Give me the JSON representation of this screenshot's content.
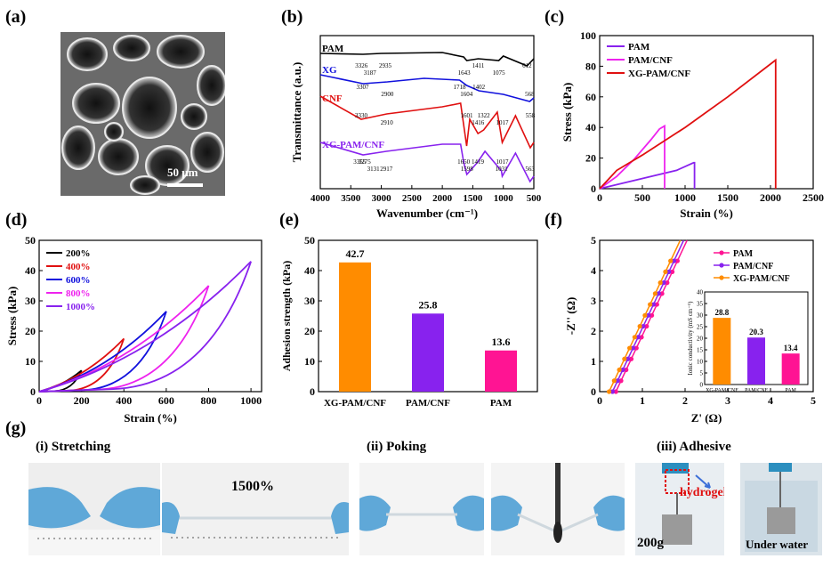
{
  "panel_labels": {
    "a": "(a)",
    "b": "(b)",
    "c": "(c)",
    "d": "(d)",
    "e": "(e)",
    "f": "(f)",
    "g": "(g)"
  },
  "sem": {
    "scalebar_label": "50 μm"
  },
  "photos": {
    "stretching_title": "(i) Stretching",
    "poking_title": "(ii) Poking",
    "adhesive_title": "(iii) Adhesive",
    "stretch_value": "1500%",
    "hydrogel_label": "hydrogel",
    "weight_label": "200g",
    "underwater_label": "Under water"
  },
  "colors": {
    "black": "#000000",
    "blue": "#1111dd",
    "red": "#e01010",
    "purple": "#8822ee",
    "magenta": "#ee22ee",
    "orange": "#ff8c00",
    "pink": "#ff1493"
  },
  "chart_data": [
    {
      "id": "b",
      "type": "line",
      "xlabel": "Wavenumber (cm⁻¹)",
      "ylabel": "Transmittance (a.u.)",
      "xlim": [
        4000,
        500
      ],
      "x_ticks": [
        "4000",
        "3500",
        "3000",
        "2500",
        "2000",
        "1500",
        "1000",
        "500"
      ],
      "series": [
        {
          "name": "PAM",
          "color": "#000000",
          "peaks": [
            "3326",
            "3187",
            "2935",
            "1643",
            "1411",
            "1075",
            "612"
          ]
        },
        {
          "name": "XG",
          "color": "#1111dd",
          "peaks": [
            "3307",
            "2900",
            "1718",
            "1604",
            "1402",
            "568"
          ]
        },
        {
          "name": "CNF",
          "color": "#e01010",
          "peaks": [
            "3330",
            "2910",
            "1601",
            "1416",
            "1322",
            "1017",
            "558"
          ]
        },
        {
          "name": "XG-PAM/CNF",
          "color": "#8822ee",
          "peaks": [
            "3355",
            "3131",
            "3275",
            "2917",
            "1650",
            "1598",
            "1419",
            "1031",
            "1017",
            "563"
          ]
        }
      ]
    },
    {
      "id": "c",
      "type": "line",
      "xlabel": "Strain (%)",
      "ylabel": "Stress (kPa)",
      "xlim": [
        0,
        2500
      ],
      "ylim": [
        0,
        100
      ],
      "x_ticks": [
        "0",
        "500",
        "1000",
        "1500",
        "2000",
        "2500"
      ],
      "y_ticks": [
        "0",
        "20",
        "40",
        "60",
        "80",
        "100"
      ],
      "legend_position": "top-left",
      "series": [
        {
          "name": "PAM",
          "color": "#8822ee",
          "x": [
            0,
            300,
            600,
            900,
            1100,
            1110,
            1110
          ],
          "y": [
            0,
            4,
            8,
            12,
            17,
            17,
            0
          ]
        },
        {
          "name": "PAM/CNF",
          "color": "#ee22ee",
          "x": [
            0,
            200,
            400,
            600,
            700,
            760,
            760
          ],
          "y": [
            0,
            8,
            19,
            32,
            39,
            41,
            0
          ]
        },
        {
          "name": "XG-PAM/CNF",
          "color": "#e01010",
          "x": [
            0,
            100,
            200,
            500,
            1000,
            1500,
            2060,
            2060
          ],
          "y": [
            0,
            6,
            12,
            22,
            40,
            60,
            84,
            0
          ]
        }
      ]
    },
    {
      "id": "d",
      "type": "line",
      "xlabel": "Strain (%)",
      "ylabel": "Stress (kPa)",
      "xlim": [
        0,
        1050
      ],
      "ylim": [
        0,
        50
      ],
      "x_ticks": [
        "0",
        "200",
        "400",
        "600",
        "800",
        "1000"
      ],
      "y_ticks": [
        "0",
        "10",
        "20",
        "30",
        "40",
        "50"
      ],
      "legend_position": "top-left",
      "series": [
        {
          "name": "200%",
          "color": "#000000",
          "max_strain": 200,
          "max_stress": 7
        },
        {
          "name": "400%",
          "color": "#e01010",
          "max_strain": 400,
          "max_stress": 17.5
        },
        {
          "name": "600%",
          "color": "#1111dd",
          "max_strain": 600,
          "max_stress": 26.5
        },
        {
          "name": "800%",
          "color": "#ee22ee",
          "max_strain": 800,
          "max_stress": 35
        },
        {
          "name": "1000%",
          "color": "#8822ee",
          "max_strain": 1000,
          "max_stress": 43
        }
      ]
    },
    {
      "id": "e",
      "type": "bar",
      "ylabel": "Adhesion strength (kPa)",
      "ylim": [
        0,
        50
      ],
      "y_ticks": [
        "0",
        "10",
        "20",
        "30",
        "40",
        "50"
      ],
      "categories": [
        "XG-PAM/CNF",
        "PAM/CNF",
        "PAM"
      ],
      "values": [
        42.7,
        25.8,
        13.6
      ],
      "value_labels": [
        "42.7",
        "25.8",
        "13.6"
      ],
      "colors": [
        "#ff8c00",
        "#8822ee",
        "#ff1493"
      ]
    },
    {
      "id": "f",
      "type": "scatter",
      "xlabel": "Z' (Ω)",
      "ylabel": "-Z'' (Ω)",
      "xlim": [
        0,
        5
      ],
      "ylim": [
        0,
        5
      ],
      "x_ticks": [
        "0",
        "1",
        "2",
        "3",
        "4",
        "5"
      ],
      "y_ticks": [
        "0",
        "1",
        "2",
        "3",
        "4",
        "5"
      ],
      "legend_position": "top-right",
      "series": [
        {
          "name": "PAM",
          "color": "#ff1493",
          "x0": 0.38,
          "slope": 3.0
        },
        {
          "name": "PAM/CNF",
          "color": "#8822ee",
          "x0": 0.3,
          "slope": 3.0
        },
        {
          "name": "XG-PAM/CNF",
          "color": "#ff8c00",
          "x0": 0.22,
          "slope": 3.0
        }
      ],
      "inset": {
        "type": "bar",
        "ylabel": "Ionic conductivity (mS cm⁻¹)",
        "ylim": [
          0,
          40
        ],
        "y_ticks": [
          "0",
          "5",
          "10",
          "15",
          "20",
          "25",
          "30",
          "35",
          "40"
        ],
        "categories": [
          "XG-PAM/CNF",
          "PAM/CNF",
          "PAM"
        ],
        "values": [
          28.8,
          20.3,
          13.4
        ],
        "value_labels": [
          "28.8",
          "20.3",
          "13.4"
        ],
        "colors": [
          "#ff8c00",
          "#8822ee",
          "#ff1493"
        ]
      }
    }
  ]
}
